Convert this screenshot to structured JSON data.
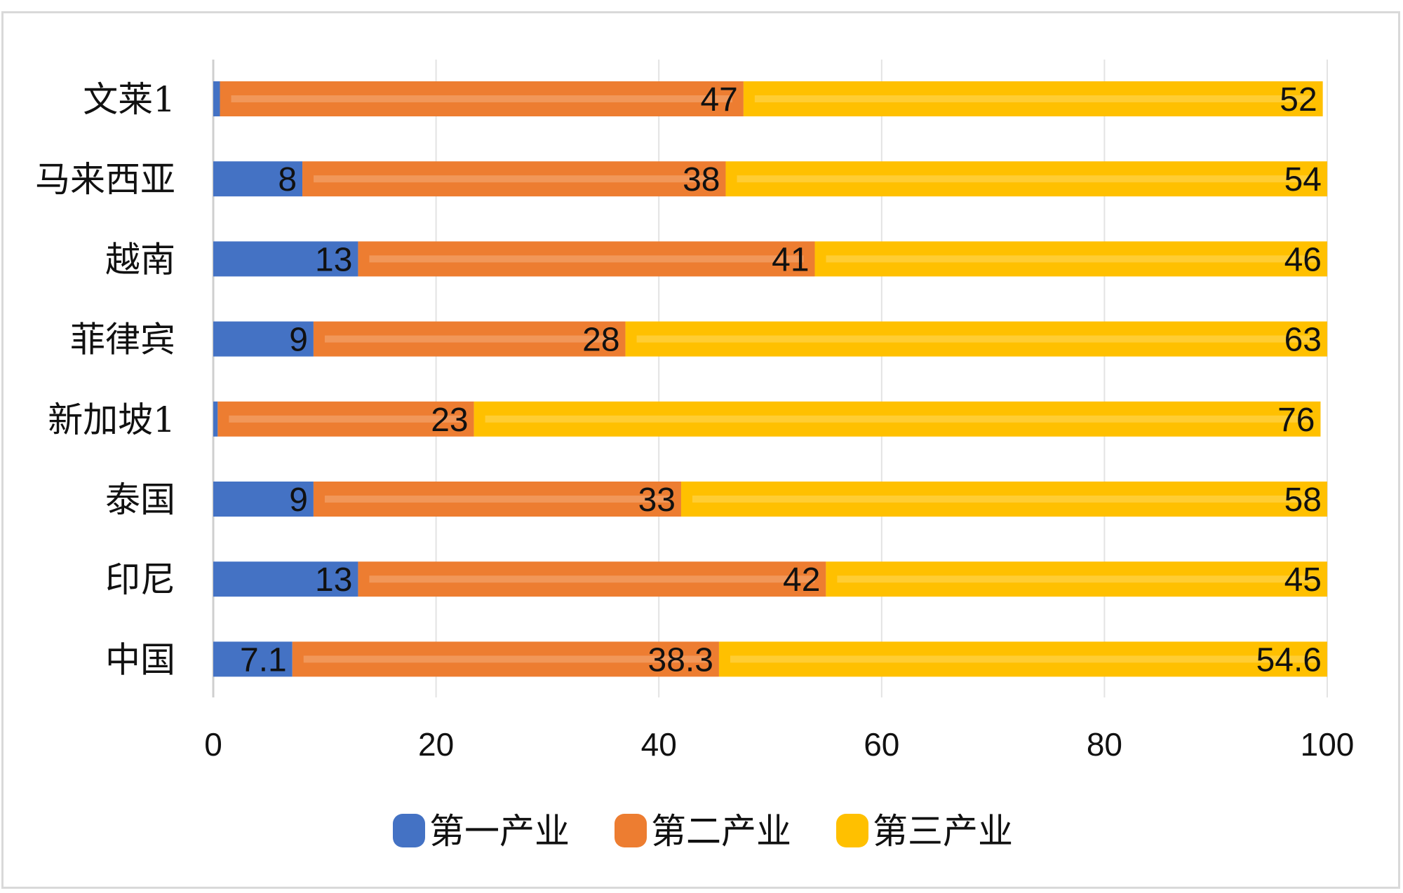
{
  "chart_data": {
    "type": "bar",
    "orientation": "horizontal",
    "stacked": true,
    "title": "",
    "xlabel": "",
    "ylabel": "",
    "xlim": [
      0,
      100
    ],
    "xticks": [
      0,
      20,
      40,
      60,
      80,
      100
    ],
    "categories": [
      "文莱1",
      "马来西亚",
      "越南",
      "菲律宾",
      "新加坡1",
      "泰国",
      "印尼",
      "中国"
    ],
    "series": [
      {
        "name": "第一产业",
        "color": "#4472C4",
        "values": [
          0.6,
          8,
          13,
          9,
          0.4,
          9,
          13,
          7.1
        ],
        "labels": [
          "",
          "8",
          "13",
          "9",
          "",
          "9",
          "13",
          "7.1"
        ]
      },
      {
        "name": "第二产业",
        "color": "#ED7D31",
        "values": [
          47,
          38,
          41,
          28,
          23,
          33,
          42,
          38.3
        ],
        "labels": [
          "47",
          "38",
          "41",
          "28",
          "23",
          "33",
          "42",
          "38.3"
        ]
      },
      {
        "name": "第三产业",
        "color": "#FFC000",
        "values": [
          52,
          54,
          46,
          63,
          76,
          58,
          45,
          54.6
        ],
        "labels": [
          "52",
          "54",
          "46",
          "63",
          "76",
          "58",
          "45",
          "54.6"
        ]
      }
    ],
    "grid": true,
    "legend": "bottom"
  }
}
